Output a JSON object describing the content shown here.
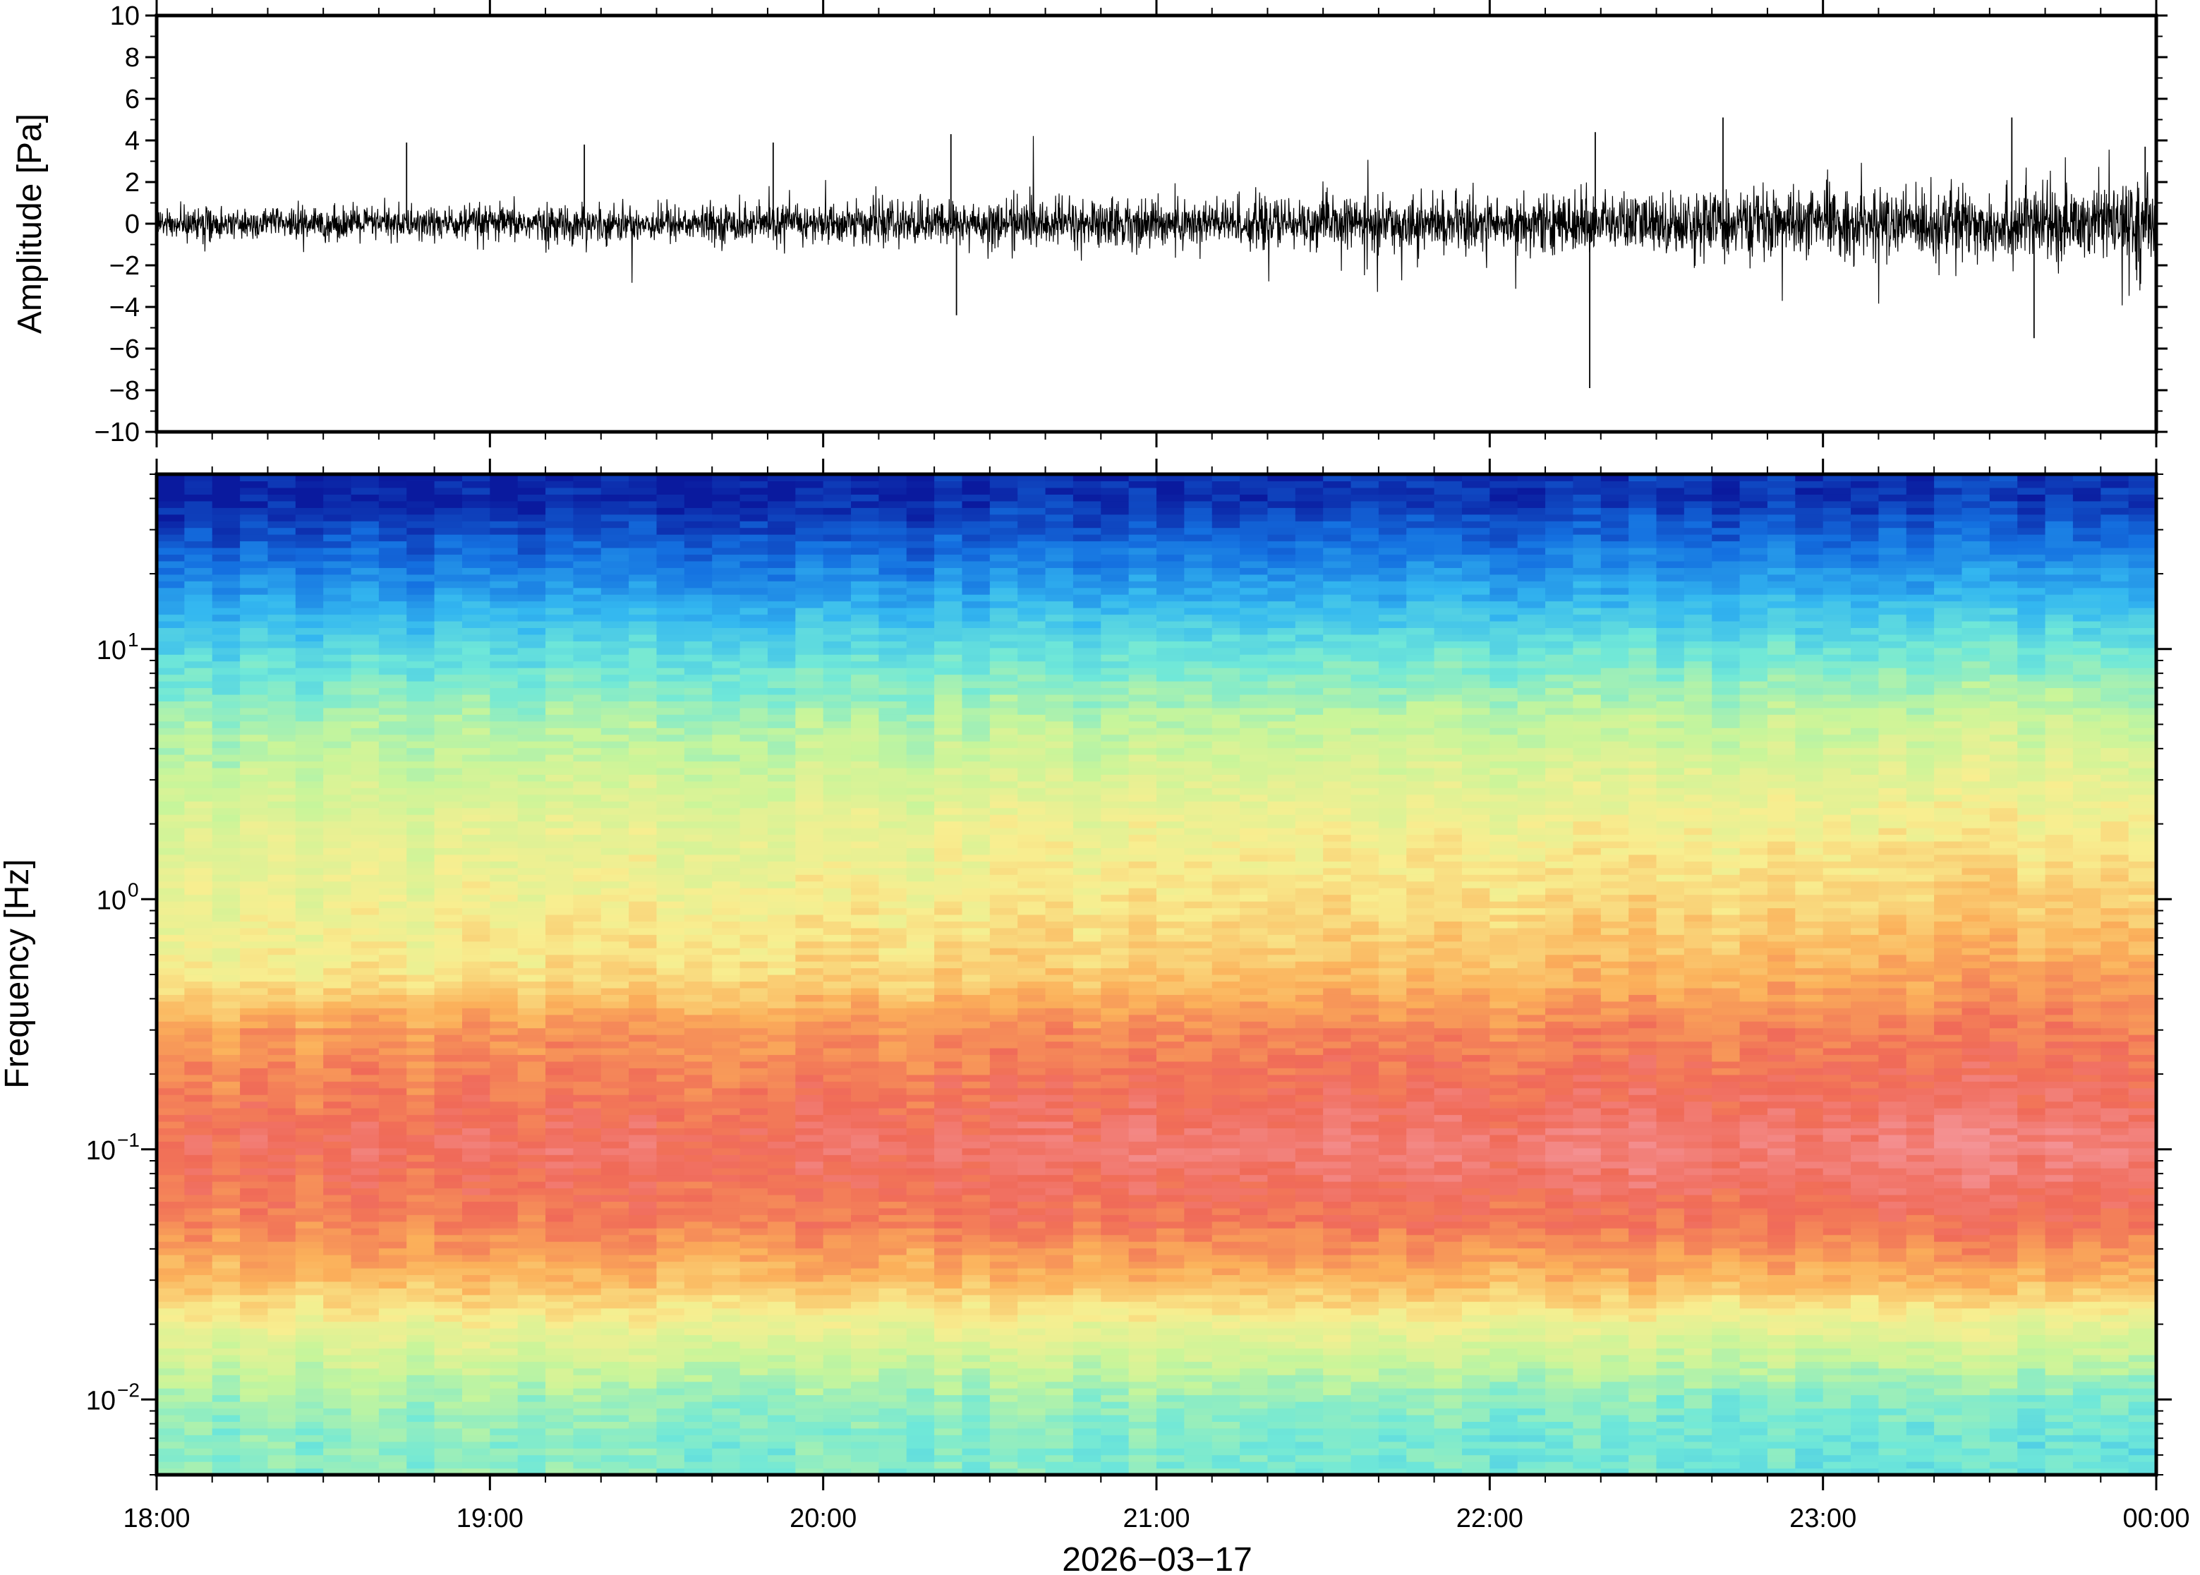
{
  "chart_data": [
    {
      "type": "line",
      "panel": "waveform",
      "ylabel": "Amplitude [Pa]",
      "ylim": [
        -10,
        10
      ],
      "yticks": [
        10,
        8,
        6,
        4,
        2,
        0,
        -2,
        -4,
        -6,
        -8,
        -10
      ],
      "ytick_labels": [
        "10",
        "8",
        "6",
        "4",
        "2",
        "0",
        "−2",
        "−4",
        "−6",
        "−8",
        "−10"
      ],
      "xlim": [
        "18:00",
        "00:00"
      ],
      "envelope": {
        "x": [
          "18:00",
          "18:30",
          "19:00",
          "19:30",
          "20:00",
          "20:30",
          "21:00",
          "21:30",
          "22:00",
          "22:30",
          "23:00",
          "23:30",
          "00:00"
        ],
        "typical_amplitude": [
          0.8,
          0.9,
          1.0,
          1.0,
          1.1,
          1.3,
          1.4,
          1.4,
          1.5,
          1.7,
          1.8,
          2.0,
          2.1
        ]
      },
      "spikes": [
        {
          "x": "18:45",
          "y": 3.9
        },
        {
          "x": "19:17",
          "y": 3.8
        },
        {
          "x": "19:51",
          "y": 3.9
        },
        {
          "x": "20:23",
          "y": 4.3
        },
        {
          "x": "20:24",
          "y": -4.4
        },
        {
          "x": "22:19",
          "y": 4.4
        },
        {
          "x": "22:18",
          "y": -7.9
        },
        {
          "x": "22:42",
          "y": 5.1
        },
        {
          "x": "23:34",
          "y": 5.1
        },
        {
          "x": "23:38",
          "y": -5.5
        },
        {
          "x": "23:58",
          "y": 3.7
        }
      ]
    },
    {
      "type": "heatmap",
      "panel": "spectrogram",
      "ylabel": "Frequency [Hz]",
      "yscale": "log",
      "ylim": [
        0.005,
        50
      ],
      "yticks": [
        0.01,
        0.1,
        1,
        10
      ],
      "ytick_labels": [
        {
          "base": "10",
          "exp": "−2"
        },
        {
          "base": "10",
          "exp": "−1"
        },
        {
          "base": "10",
          "exp": "0"
        },
        {
          "base": "10",
          "exp": "1"
        }
      ],
      "xlim": [
        "18:00",
        "00:00"
      ],
      "xticks": [
        "18:00",
        "19:00",
        "20:00",
        "21:00",
        "22:00",
        "23:00",
        "00:00"
      ],
      "xlabel": "2026−03−17",
      "colormap": [
        "#0a1a9e",
        "#1470e0",
        "#34b8f0",
        "#70e8d8",
        "#c8f59a",
        "#f8ee90",
        "#fbb05a",
        "#f06a58",
        "#f59aa0"
      ],
      "profile": {
        "frequency_hz": [
          40,
          20,
          10,
          5,
          2,
          1,
          0.5,
          0.3,
          0.1,
          0.05,
          0.03,
          0.02,
          0.01,
          0.007
        ],
        "level_start": [
          0.0,
          0.15,
          0.32,
          0.45,
          0.55,
          0.58,
          0.62,
          0.78,
          0.88,
          0.82,
          0.72,
          0.6,
          0.45,
          0.42
        ],
        "level_end": [
          0.05,
          0.2,
          0.38,
          0.52,
          0.63,
          0.7,
          0.78,
          0.84,
          0.95,
          0.86,
          0.74,
          0.58,
          0.4,
          0.36
        ]
      }
    }
  ]
}
